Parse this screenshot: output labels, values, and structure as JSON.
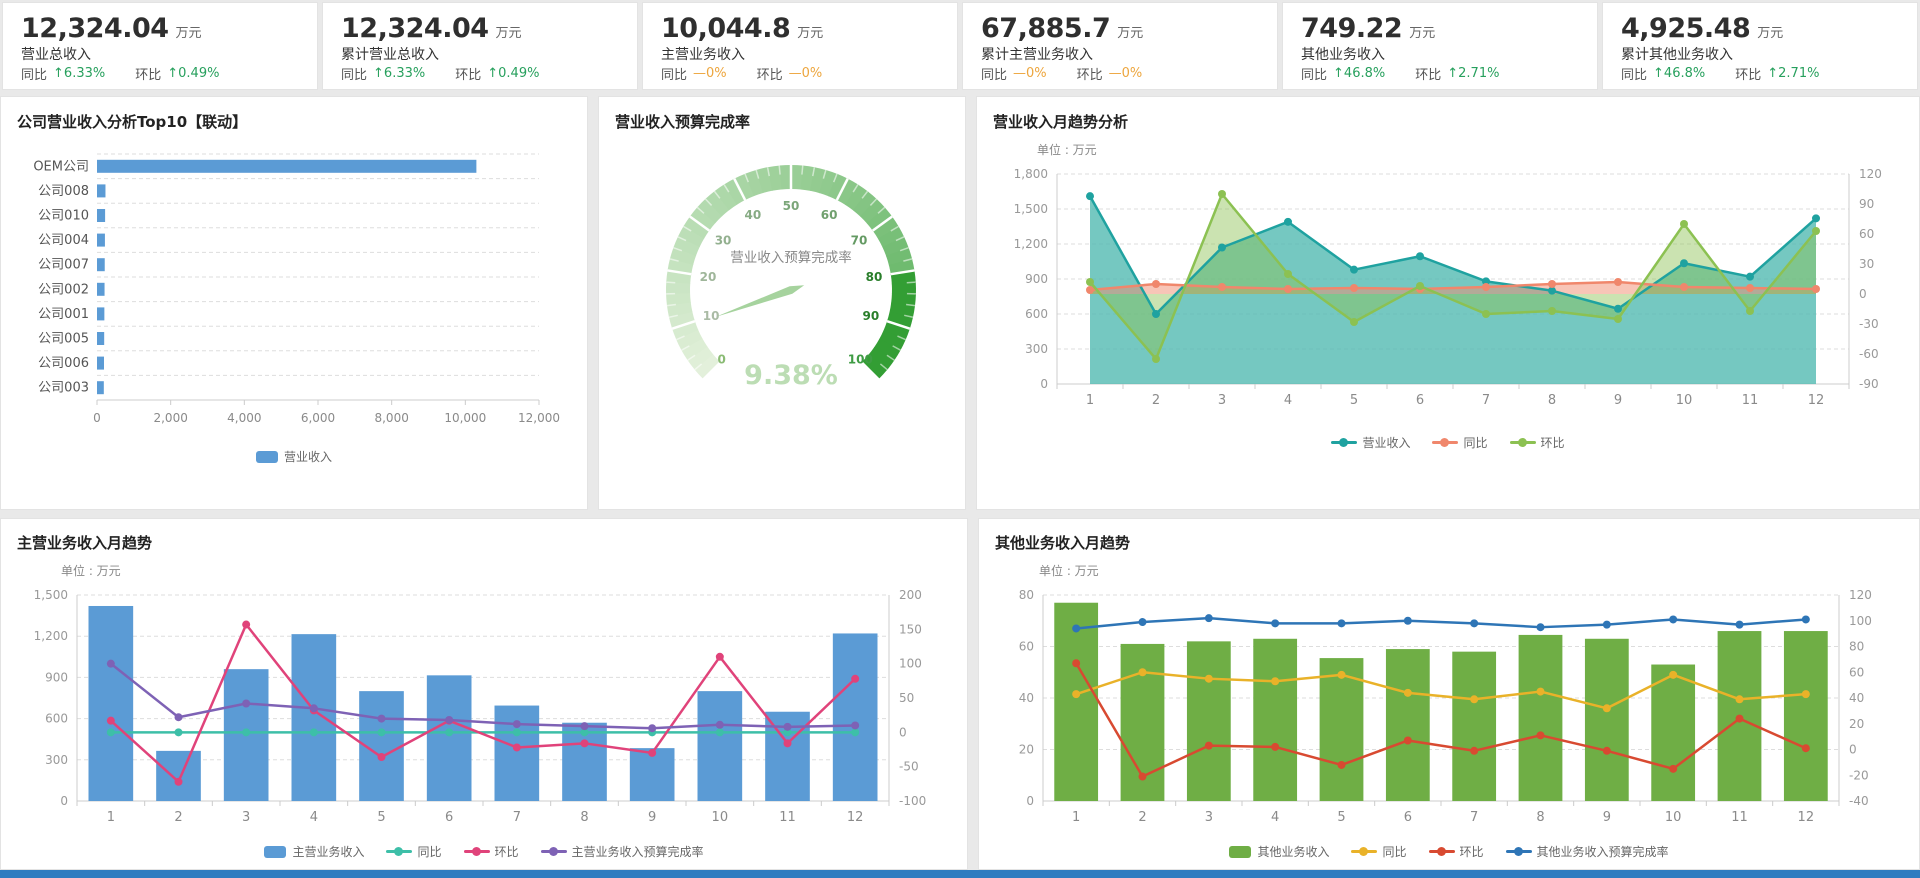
{
  "kpi_cards": [
    {
      "value": "12,324.04",
      "unit": "万元",
      "label": "营业总收入",
      "yoy_label": "同比",
      "yoy_icon": "↑",
      "yoy": "6.33%",
      "mom_label": "环比",
      "mom_icon": "↑",
      "mom": "0.49%"
    },
    {
      "value": "12,324.04",
      "unit": "万元",
      "label": "累计营业总收入",
      "yoy_label": "同比",
      "yoy_icon": "↑",
      "yoy": "6.33%",
      "mom_label": "环比",
      "mom_icon": "↑",
      "mom": "0.49%"
    },
    {
      "value": "10,044.8",
      "unit": "万元",
      "label": "主营业务收入",
      "yoy_label": "同比",
      "yoy_icon": "—",
      "yoy": "0%",
      "mom_label": "环比",
      "mom_icon": "—",
      "mom": "0%"
    },
    {
      "value": "67,885.7",
      "unit": "万元",
      "label": "累计主营业务收入",
      "yoy_label": "同比",
      "yoy_icon": "—",
      "yoy": "0%",
      "mom_label": "环比",
      "mom_icon": "—",
      "mom": "0%"
    },
    {
      "value": "749.22",
      "unit": "万元",
      "label": "其他业务收入",
      "yoy_label": "同比",
      "yoy_icon": "↑",
      "yoy": "46.8%",
      "mom_label": "环比",
      "mom_icon": "↑",
      "mom": "2.71%"
    },
    {
      "value": "4,925.48",
      "unit": "万元",
      "label": "累计其他业务收入",
      "yoy_label": "同比",
      "yoy_icon": "↑",
      "yoy": "46.8%",
      "mom_label": "环比",
      "mom_icon": "↑",
      "mom": "2.71%"
    }
  ],
  "colors": {
    "positive_green": "#27a05d",
    "neutral_orange": "#eda63e",
    "bottom_strip": "#2e7cc0",
    "panel_border": "#e3e3e3",
    "grid_line": "#dddddd"
  },
  "chart_data": [
    {
      "id": "top10",
      "type": "bar",
      "orientation": "horizontal",
      "title": "公司营业收入分析Top10【联动】",
      "categories": [
        "OEM公司",
        "公司008",
        "公司010",
        "公司004",
        "公司007",
        "公司002",
        "公司001",
        "公司005",
        "公司006",
        "公司003"
      ],
      "series": [
        {
          "name": "营业收入",
          "type": "bar",
          "color": "#5b9bd5",
          "values": [
            10300,
            230,
            220,
            215,
            210,
            205,
            200,
            195,
            190,
            185
          ]
        }
      ],
      "xlim": [
        0,
        12000
      ],
      "xticks": [
        0,
        2000,
        4000,
        6000,
        8000,
        10000,
        12000
      ],
      "legend_position": "bottom",
      "grid": "dashed"
    },
    {
      "id": "gauge",
      "type": "gauge",
      "title": "营业收入预算完成率",
      "name": "营业收入预算完成率",
      "value": 9.38,
      "display": "9.38%",
      "min": 0,
      "max": 100,
      "major_tick_step": 10,
      "tick_labels": [
        "10",
        "20",
        "30",
        "40",
        "50",
        "60",
        "70",
        "80",
        "90"
      ],
      "end_labels": [
        "0",
        "100"
      ]
    },
    {
      "id": "monthly",
      "type": "line",
      "title": "营业收入月趋势分析",
      "unit_label": "单位 : 万元",
      "x": [
        1,
        2,
        3,
        4,
        5,
        6,
        7,
        8,
        9,
        10,
        11,
        12
      ],
      "left_axis": {
        "min": 0,
        "max": 1800,
        "step": 300
      },
      "right_axis": {
        "min": -90,
        "max": 120,
        "step": 30
      },
      "series": [
        {
          "name": "营业收入",
          "axis": "left",
          "type": "line",
          "area": "bottom",
          "color": "#1fa2a0",
          "fill": "rgba(82,186,178,0.8)",
          "values": [
            1610,
            600,
            1170,
            1390,
            980,
            1095,
            880,
            800,
            645,
            1035,
            920,
            1420
          ]
        },
        {
          "name": "同比",
          "axis": "right",
          "type": "line",
          "area": "zero",
          "color": "#f0876c",
          "fill": "rgba(242,139,111,0.5)",
          "values": [
            4,
            10,
            7,
            5,
            6,
            5,
            7,
            10,
            12,
            7,
            6,
            5
          ]
        },
        {
          "name": "环比",
          "axis": "right",
          "type": "line",
          "area": "zero",
          "color": "#8cc152",
          "fill": "rgba(140,193,82,0.45)",
          "values": [
            12,
            -65,
            100,
            20,
            -28,
            8,
            -20,
            -17,
            -25,
            70,
            -17,
            63
          ]
        }
      ],
      "legend_position": "bottom",
      "grid": "dashed"
    },
    {
      "id": "main_biz",
      "type": "bar-line",
      "title": "主营业务收入月趋势",
      "unit_label": "单位 : 万元",
      "x": [
        1,
        2,
        3,
        4,
        5,
        6,
        7,
        8,
        9,
        10,
        11,
        12
      ],
      "left_axis": {
        "min": 0,
        "max": 1500,
        "step": 300
      },
      "right_axis": {
        "min": -100,
        "max": 200,
        "step": 50
      },
      "series": [
        {
          "name": "主营业务收入",
          "axis": "left",
          "type": "bar",
          "color": "#5b9bd5",
          "values": [
            1420,
            365,
            960,
            1215,
            800,
            915,
            695,
            570,
            385,
            800,
            650,
            1220
          ]
        },
        {
          "name": "同比",
          "axis": "right",
          "type": "line",
          "color": "#3dbfa8",
          "values": [
            0,
            0,
            0,
            0,
            0,
            0,
            0,
            0,
            0,
            0,
            0,
            0
          ]
        },
        {
          "name": "环比",
          "axis": "right",
          "type": "line",
          "color": "#e0437a",
          "values": [
            17,
            -72,
            157,
            32,
            -36,
            17,
            -22,
            -16,
            -30,
            110,
            -16,
            78
          ]
        },
        {
          "name": "主营业务收入预算完成率",
          "axis": "right",
          "type": "line",
          "color": "#7e62b5",
          "values": [
            100,
            22,
            42,
            35,
            20,
            18,
            12,
            9,
            6,
            11,
            8,
            10
          ]
        }
      ],
      "legend_position": "bottom",
      "grid": "dashed"
    },
    {
      "id": "other_biz",
      "type": "bar-line",
      "title": "其他业务收入月趋势",
      "unit_label": "单位 : 万元",
      "x": [
        1,
        2,
        3,
        4,
        5,
        6,
        7,
        8,
        9,
        10,
        11,
        12
      ],
      "left_axis": {
        "min": 0,
        "max": 80,
        "step": 20
      },
      "right_axis": {
        "min": -40,
        "max": 120,
        "step": 20
      },
      "series": [
        {
          "name": "其他业务收入",
          "axis": "left",
          "type": "bar",
          "color": "#6fae45",
          "values": [
            77,
            61,
            62,
            63,
            55.5,
            59,
            58,
            64.5,
            63,
            53,
            66,
            66
          ]
        },
        {
          "name": "同比",
          "axis": "right",
          "type": "line",
          "color": "#e9b229",
          "values": [
            43,
            60,
            55,
            53,
            58,
            44,
            39,
            45,
            32,
            58,
            39,
            43
          ]
        },
        {
          "name": "环比",
          "axis": "right",
          "type": "line",
          "color": "#d84a31",
          "values": [
            67,
            -21,
            3,
            2,
            -12,
            7,
            -1,
            11,
            -1,
            -15,
            24,
            1
          ]
        },
        {
          "name": "其他业务收入预算完成率",
          "axis": "right",
          "type": "line",
          "color": "#2e75b6",
          "values": [
            94,
            99,
            102,
            98,
            98,
            100,
            98,
            95,
            97,
            101,
            97,
            101
          ]
        }
      ],
      "legend_position": "bottom",
      "grid": "dashed"
    }
  ]
}
